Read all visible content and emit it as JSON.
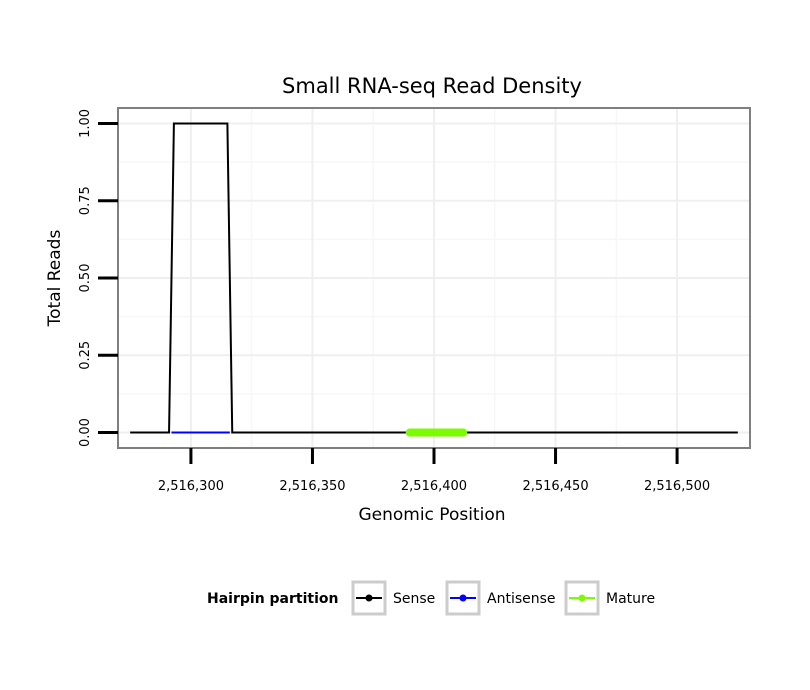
{
  "chart_data": {
    "type": "line",
    "title": "Small RNA-seq Read Density",
    "xlabel": "Genomic Position",
    "ylabel": "Total Reads",
    "xlim": [
      2516270,
      2516530
    ],
    "ylim": [
      -0.05,
      1.05
    ],
    "x_ticks": [
      2516300,
      2516350,
      2516400,
      2516450,
      2516500
    ],
    "x_tick_labels": [
      "2,516,300",
      "2,516,350",
      "2,516,400",
      "2,516,450",
      "2,516,500"
    ],
    "y_ticks": [
      0,
      0.25,
      0.5,
      0.75,
      1.0
    ],
    "y_tick_labels": [
      "0.00",
      "0.25",
      "0.50",
      "0.75",
      "1.00"
    ],
    "grid": true,
    "legend": {
      "title": "Hairpin partition",
      "placement": "bottom"
    },
    "series": [
      {
        "name": "Sense",
        "color": "#000000",
        "x": [
          2516275,
          2516291,
          2516293,
          2516315,
          2516317,
          2516525
        ],
        "y": [
          0,
          0,
          1,
          1,
          0,
          0
        ]
      },
      {
        "name": "Antisense",
        "color": "#0000ff",
        "x": [
          2516292,
          2516316
        ],
        "y": [
          0,
          0
        ]
      },
      {
        "name": "Mature",
        "color": "#7cfc00",
        "x": [
          2516390,
          2516412
        ],
        "y": [
          0,
          0
        ]
      }
    ]
  }
}
